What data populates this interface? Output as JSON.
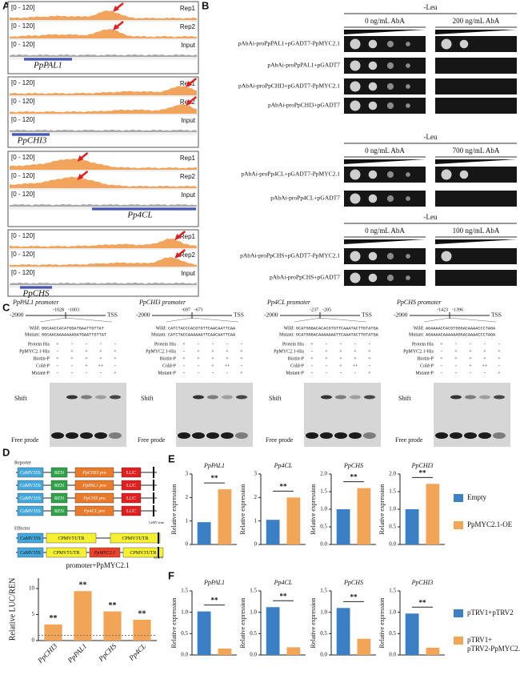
{
  "panel_labels": [
    "A",
    "B",
    "C",
    "D",
    "E",
    "F"
  ],
  "panel_a": {
    "tracks": [
      {
        "gene": "PpPAL1",
        "rows": [
          {
            "range": "[0 - 120]",
            "label": "Rep1"
          },
          {
            "range": "[0 - 120]",
            "label": "Rep2"
          },
          {
            "range": "[0 - 120]",
            "label": "Input"
          }
        ]
      },
      {
        "gene": "PpCHI3",
        "rows": [
          {
            "range": "[0 - 120]",
            "label": "Rep1"
          },
          {
            "range": "[0 - 120]",
            "label": "Rep2"
          },
          {
            "range": "[0 - 120]",
            "label": "Input"
          }
        ]
      },
      {
        "gene": "Pp4CL",
        "rows": [
          {
            "range": "[0 - 120]",
            "label": "Rep1"
          },
          {
            "range": "[0 - 120]",
            "label": "Rep2"
          },
          {
            "range": "[0 - 120]",
            "label": "Input"
          }
        ]
      },
      {
        "gene": "PpCHS",
        "rows": [
          {
            "range": "[0 - 120]",
            "label": "Rep1"
          },
          {
            "range": "[0 - 120]",
            "label": "Rep2"
          },
          {
            "range": "[0 - 120]",
            "label": "Input"
          }
        ]
      }
    ]
  },
  "panel_b": {
    "groups": [
      {
        "medium": "-Leu",
        "conditions": [
          "0 ng/mL AbA",
          "200 ng/mL AbA"
        ],
        "rows": [
          "pAbAi-proPpPAL1+pGADT7-PpMYC2.1",
          "pAbAi-proPpPAL1+pGADT7",
          "pAbAi-proPpCHI3+pGADT7-PpMYC2.1",
          "pAbAi-proPpCHI3+pGADT7"
        ]
      },
      {
        "medium": "-Leu",
        "conditions": [
          "0 ng/mL AbA",
          "700 ng/mL AbA"
        ],
        "rows": [
          "pAbAi-proPp4CL+pGADT7-PpMYC2.1",
          "pAbAi-proPp4CL+pGADT7"
        ]
      },
      {
        "medium": "-Leu",
        "conditions": [
          "0 ng/mL AbA",
          "100 ng/mL AbA"
        ],
        "rows": [
          "pAbAi-proPpCHS+pGADT7-PpMYC2.1",
          "pAbAi-proPpCHS+pGADT7"
        ]
      }
    ]
  },
  "panel_c": {
    "row_labels": [
      "Protein His",
      "PpMYC2.1-His",
      "Biotin-P",
      "Cold-P",
      "Mutant-P"
    ],
    "shift": "Shift",
    "free": "Free prode",
    "wild_label": "Wild:",
    "mutant_label": "Mutant:",
    "start": "-2000",
    "end": "TSS",
    "assays": [
      {
        "title": "PpPAL1 promoter",
        "site": [
          "-1028",
          "-1003"
        ],
        "wild": "GGCAACCACATGGATGAATTGTTAT",
        "mutant": "GGCAACAAAAAAAGATGAATTGTTAT",
        "lanes": [
          [
            "+",
            "-",
            "-",
            "-",
            "-"
          ],
          [
            "-",
            "+",
            "+",
            "+",
            "+"
          ],
          [
            "+",
            "+",
            "+",
            "+",
            "+"
          ],
          [
            "-",
            "-",
            "+",
            "++",
            "-"
          ],
          [
            "-",
            "-",
            "-",
            "-",
            "+"
          ]
        ]
      },
      {
        "title": "PpCHI3 promoter",
        "site": [
          "-697",
          "-671"
        ],
        "wild": "CATCTACCCACGTGTTCAACAATTCAA",
        "mutant": "CATCTACCAAAAAATTCAACAATTCAA",
        "lanes": [
          [
            "+",
            "-",
            "-",
            "-",
            "-"
          ],
          [
            "-",
            "+",
            "+",
            "+",
            "+"
          ],
          [
            "+",
            "+",
            "+",
            "+",
            "+"
          ],
          [
            "-",
            "-",
            "+",
            "++",
            "-"
          ],
          [
            "-",
            "-",
            "-",
            "-",
            "+"
          ]
        ]
      },
      {
        "title": "Pp4CL promoter",
        "site": [
          "-237",
          "-205"
        ],
        "wild": "GCATGGGACACACGTGTTCAAATACTTGTATGA",
        "mutant": "GCATGGGACAAAAAAATTCAAATACTTGTATGA",
        "lanes": [
          [
            "+",
            "-",
            "-",
            "-",
            "-"
          ],
          [
            "-",
            "+",
            "+",
            "+",
            "+"
          ],
          [
            "+",
            "+",
            "+",
            "+",
            "+"
          ],
          [
            "-",
            "-",
            "+",
            "++",
            "-"
          ],
          [
            "-",
            "-",
            "-",
            "-",
            "+"
          ]
        ]
      },
      {
        "title": "PpCHS promoter",
        "site": [
          "-1423",
          "-1396"
        ],
        "wild": "AGAAAACCACGTGGGACAAAACCCTAGA",
        "mutant": "AGAAAACAAAAAAGGACAAAACCCTAGA",
        "lanes": [
          [
            "+",
            "-",
            "-",
            "-",
            "-"
          ],
          [
            "-",
            "+",
            "+",
            "+",
            "+"
          ],
          [
            "+",
            "+",
            "+",
            "+",
            "+"
          ],
          [
            "-",
            "-",
            "+",
            "++",
            "-"
          ],
          [
            "-",
            "-",
            "-",
            "-",
            "+"
          ]
        ]
      }
    ]
  },
  "panel_d": {
    "reporter": "Reporter",
    "effector": "Effector",
    "reporters": [
      [
        "CaMV35S",
        "REN",
        "PpCHI3 pro",
        "LUC"
      ],
      [
        "CaMV35S",
        "REN",
        "PpPAL1 pro",
        "LUC"
      ],
      [
        "CaMV35S",
        "REN",
        "PpCHS pro",
        "LUC"
      ],
      [
        "CaMV35S",
        "REN",
        "Pp4CL pro",
        "LUC"
      ]
    ],
    "effectors": [
      [
        "CaMV35S",
        "CPMV5'UTR",
        "CPMV3'UTR"
      ],
      [
        "CaMV35S",
        "CPMV5'UTR",
        "PpMYC2.1",
        "CPMV3'UTR"
      ]
    ],
    "terminators": [
      "CaMV term",
      "NOS-T"
    ]
  },
  "legend_e": [
    {
      "name": "Empty",
      "color": "#3b7fc4"
    },
    {
      "name": "PpMYC2.1-OE",
      "color": "#f3a557"
    }
  ],
  "legend_f": [
    {
      "name": "pTRV1+pTRV2",
      "color": "#3b7fc4"
    },
    {
      "name": "pTRV1+ pTRV2-PpMYC2.1",
      "color": "#f3a557"
    }
  ],
  "chart_data": [
    {
      "type": "bar",
      "title": "promoter+PpMYC2.1",
      "ylabel": "Relative LUC/REN",
      "categories": [
        "PpCHI3",
        "PpPAL1",
        "PpCHS",
        "Pp4CL"
      ],
      "values": [
        3.1,
        9.5,
        5.6,
        4.0
      ],
      "color": "#f3a557",
      "ylim": [
        0,
        12
      ],
      "yticks": [
        0,
        5,
        10
      ],
      "annotations": [
        "**",
        "**",
        "**",
        "**"
      ],
      "reference_line": 1
    },
    {
      "type": "bar",
      "title": "PpPAL1",
      "ylabel": "Relative expression",
      "values": [
        0.95,
        2.35
      ],
      "ylim": [
        0,
        3
      ],
      "yticks": [
        0,
        1,
        2,
        3
      ],
      "annotation": "**"
    },
    {
      "type": "bar",
      "title": "Pp4CL",
      "ylabel": "Relative expression",
      "values": [
        1.05,
        2.0
      ],
      "ylim": [
        0,
        3
      ],
      "yticks": [
        0,
        1,
        2,
        3
      ],
      "annotation": "**"
    },
    {
      "type": "bar",
      "title": "PpCHS",
      "ylabel": "Relative expression",
      "values": [
        1.0,
        1.6
      ],
      "ylim": [
        0,
        2
      ],
      "yticks": [
        {
          "value": 0,
          "label": "0.0"
        },
        0.5,
        {
          "value": 1,
          "label": "1.0"
        },
        1.5,
        {
          "value": 2,
          "label": "2.0"
        }
      ],
      "annotation": "**"
    },
    {
      "type": "bar",
      "title": "PpCHI3",
      "ylabel": "Relative expression",
      "values": [
        1.0,
        1.72
      ],
      "ylim": [
        0,
        2
      ],
      "yticks": [
        {
          "value": 0,
          "label": "0.0"
        },
        0.5,
        {
          "value": 1,
          "label": "1.0"
        },
        1.5,
        {
          "value": 2,
          "label": "2.0"
        }
      ],
      "annotation": "**"
    },
    {
      "type": "bar",
      "title": "PpPAL1",
      "ylabel": "Relative expression",
      "values": [
        1.02,
        0.15
      ],
      "ylim": [
        0,
        1.5
      ],
      "yticks": [
        {
          "value": 0,
          "label": "0.0"
        },
        0.5,
        {
          "value": 1,
          "label": "1.0"
        },
        1.5
      ],
      "annotation": "**"
    },
    {
      "type": "bar",
      "title": "Pp4CL",
      "ylabel": "Relative expression",
      "values": [
        1.12,
        0.18
      ],
      "ylim": [
        0,
        1.5
      ],
      "yticks": [
        {
          "value": 0,
          "label": "0.0"
        },
        0.5,
        {
          "value": 1,
          "label": "1.0"
        },
        1.5
      ],
      "annotation": "**"
    },
    {
      "type": "bar",
      "title": "PpCHS",
      "ylabel": "Relative expression",
      "values": [
        1.1,
        0.38
      ],
      "ylim": [
        0,
        1.5
      ],
      "yticks": [
        {
          "value": 0,
          "label": "0.0"
        },
        0.5,
        {
          "value": 1,
          "label": "1.0"
        },
        1.5
      ],
      "annotation": "**"
    },
    {
      "type": "bar",
      "title": "PpCHI3",
      "ylabel": "Relative expression",
      "values": [
        0.97,
        0.17
      ],
      "ylim": [
        0,
        1.5
      ],
      "yticks": [
        {
          "value": 0,
          "label": "0.0"
        },
        0.5,
        {
          "value": 1,
          "label": "1.0"
        },
        1.5
      ],
      "annotation": "**"
    }
  ]
}
